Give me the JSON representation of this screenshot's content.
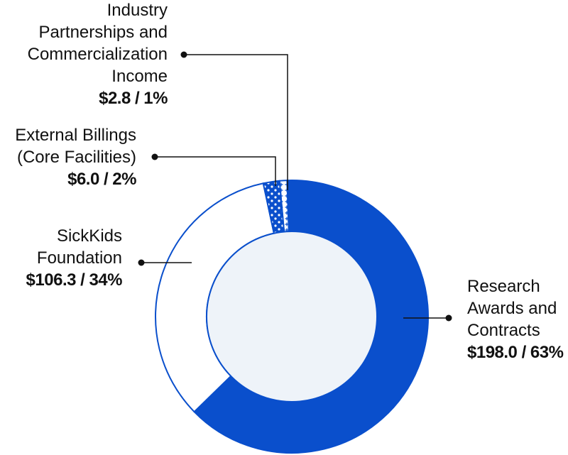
{
  "chart_data": {
    "type": "pie",
    "variant": "donut",
    "legend": "none",
    "slices": [
      {
        "label_lines": [
          "Industry",
          "Partnerships and",
          "Commercialization",
          "Income"
        ],
        "value": 2.8,
        "percent": 1,
        "value_label": "$2.8 / 1%",
        "fill": "pattern-plus",
        "color": "#ffffff"
      },
      {
        "label_lines": [
          "Research",
          "Awards and",
          "Contracts"
        ],
        "value": 198.0,
        "percent": 63,
        "value_label": "$198.0 / 63%",
        "fill": "solid",
        "color": "#0a4fcc"
      },
      {
        "label_lines": [
          "SickKids",
          "Foundation"
        ],
        "value": 106.3,
        "percent": 34,
        "value_label": "$106.3 / 34%",
        "fill": "solid",
        "color": "#ffffff"
      },
      {
        "label_lines": [
          "External Billings",
          "(Core Facilities)"
        ],
        "value": 6.0,
        "percent": 2,
        "value_label": "$6.0 / 2%",
        "fill": "pattern-dots",
        "color": "#0a4fcc"
      }
    ],
    "colors": {
      "accent": "#0a4fcc",
      "center": "#eef3f9",
      "text": "#111111"
    }
  }
}
